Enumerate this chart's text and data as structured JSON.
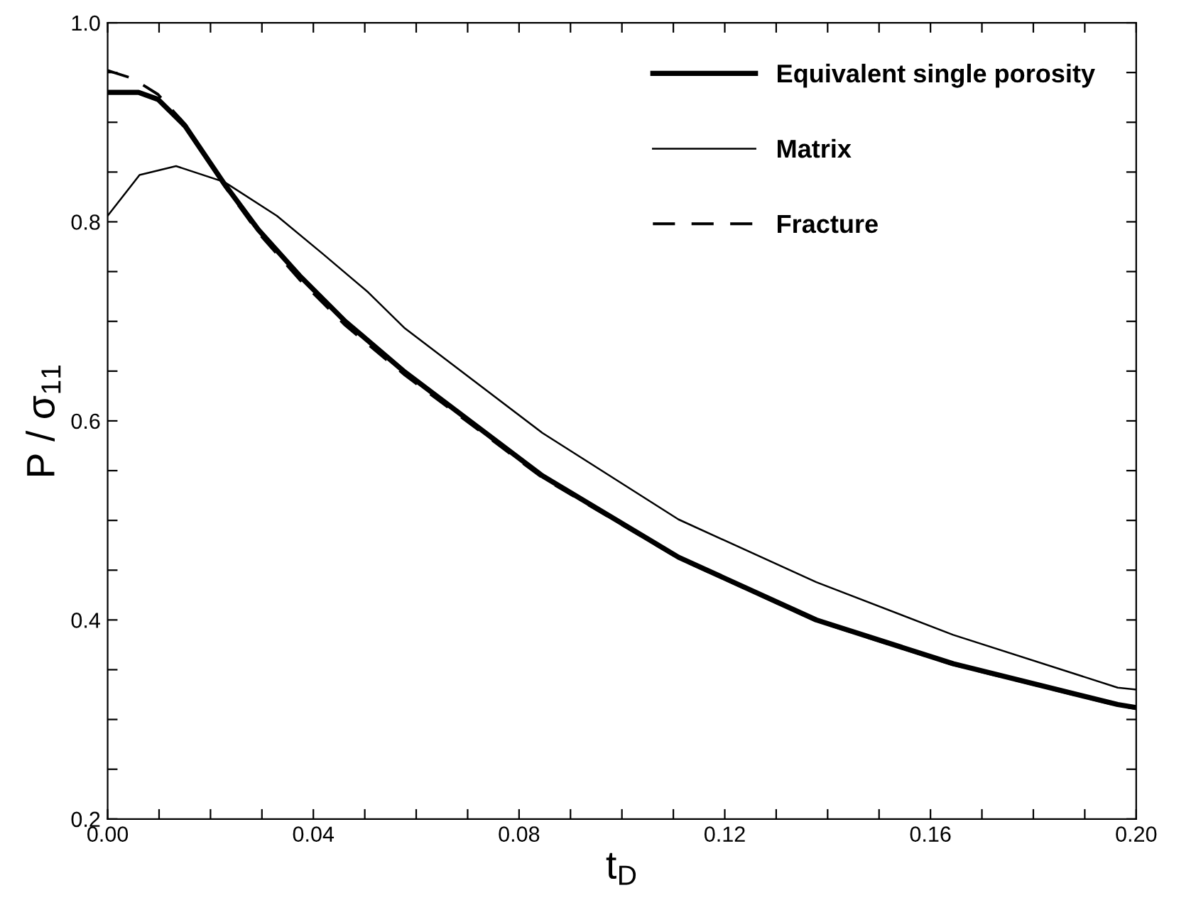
{
  "chart_data": {
    "type": "line",
    "xlabel": "t$_{D}$",
    "ylabel": "P / σ$_{11}$",
    "xlim": [
      0,
      0.2
    ],
    "ylim": [
      0.2,
      1.0
    ],
    "xticks": [
      {
        "value": 0,
        "label": "0.00"
      },
      {
        "value": 0.01,
        "label": null
      },
      {
        "value": 0.02,
        "label": null
      },
      {
        "value": 0.03,
        "label": null
      },
      {
        "value": 0.04,
        "label": "0.04"
      },
      {
        "value": 0.05,
        "label": null
      },
      {
        "value": 0.06,
        "label": null
      },
      {
        "value": 0.07,
        "label": null
      },
      {
        "value": 0.08,
        "label": "0.08"
      },
      {
        "value": 0.09,
        "label": null
      },
      {
        "value": 0.1,
        "label": null
      },
      {
        "value": 0.11,
        "label": null
      },
      {
        "value": 0.12,
        "label": "0.12"
      },
      {
        "value": 0.13,
        "label": null
      },
      {
        "value": 0.14,
        "label": null
      },
      {
        "value": 0.15,
        "label": null
      },
      {
        "value": 0.16,
        "label": "0.16"
      },
      {
        "value": 0.17,
        "label": null
      },
      {
        "value": 0.18,
        "label": null
      },
      {
        "value": 0.19,
        "label": null
      },
      {
        "value": 0.2,
        "label": "0.20"
      }
    ],
    "yticks": [
      {
        "value": 0.2,
        "label": "0.2"
      },
      {
        "value": 0.25,
        "label": null
      },
      {
        "value": 0.3,
        "label": null
      },
      {
        "value": 0.35,
        "label": null
      },
      {
        "value": 0.4,
        "label": "0.4"
      },
      {
        "value": 0.45,
        "label": null
      },
      {
        "value": 0.5,
        "label": null
      },
      {
        "value": 0.55,
        "label": null
      },
      {
        "value": 0.6,
        "label": "0.6"
      },
      {
        "value": 0.65,
        "label": null
      },
      {
        "value": 0.7,
        "label": null
      },
      {
        "value": 0.75,
        "label": null
      },
      {
        "value": 0.8,
        "label": "0.8"
      },
      {
        "value": 0.85,
        "label": null
      },
      {
        "value": 0.9,
        "label": null
      },
      {
        "value": 0.95,
        "label": null
      },
      {
        "value": 1.0,
        "label": "1.0"
      }
    ],
    "legend": "top right",
    "grid": false,
    "marker": "none",
    "series": [
      {
        "name": "Equivalent single porosity",
        "color": "#000000",
        "line_style": "solid",
        "x": [
          0,
          0.006,
          0.0098,
          0.0151,
          0.0227,
          0.0293,
          0.0373,
          0.0462,
          0.0578,
          0.0845,
          0.111,
          0.1378,
          0.1644,
          0.1964,
          0.2
        ],
        "values": [
          0.93,
          0.93,
          0.923,
          0.896,
          0.838,
          0.792,
          0.746,
          0.7,
          0.649,
          0.545,
          0.463,
          0.4,
          0.356,
          0.315,
          0.312
        ]
      },
      {
        "name": "Matrix",
        "color": "#000000",
        "line_style": "solid",
        "x": [
          0,
          0.0062,
          0.0133,
          0.0227,
          0.0329,
          0.0418,
          0.0507,
          0.0578,
          0.0845,
          0.111,
          0.1378,
          0.1644,
          0.1964,
          0.2
        ],
        "values": [
          0.806,
          0.847,
          0.856,
          0.84,
          0.806,
          0.768,
          0.729,
          0.693,
          0.588,
          0.501,
          0.438,
          0.385,
          0.332,
          0.33
        ]
      },
      {
        "name": "Fracture",
        "color": "#000000",
        "line_style": "dashed",
        "x": [
          0,
          0.0049,
          0.0098,
          0.0151,
          0.0227,
          0.0293,
          0.0373,
          0.0462,
          0.0578,
          0.0845,
          0.111,
          0.1378,
          0.1644,
          0.1964,
          0.2
        ],
        "values": [
          0.952,
          0.944,
          0.928,
          0.898,
          0.836,
          0.789,
          0.742,
          0.696,
          0.646,
          0.543,
          0.462,
          0.399,
          0.355,
          0.314,
          0.311
        ]
      }
    ]
  }
}
